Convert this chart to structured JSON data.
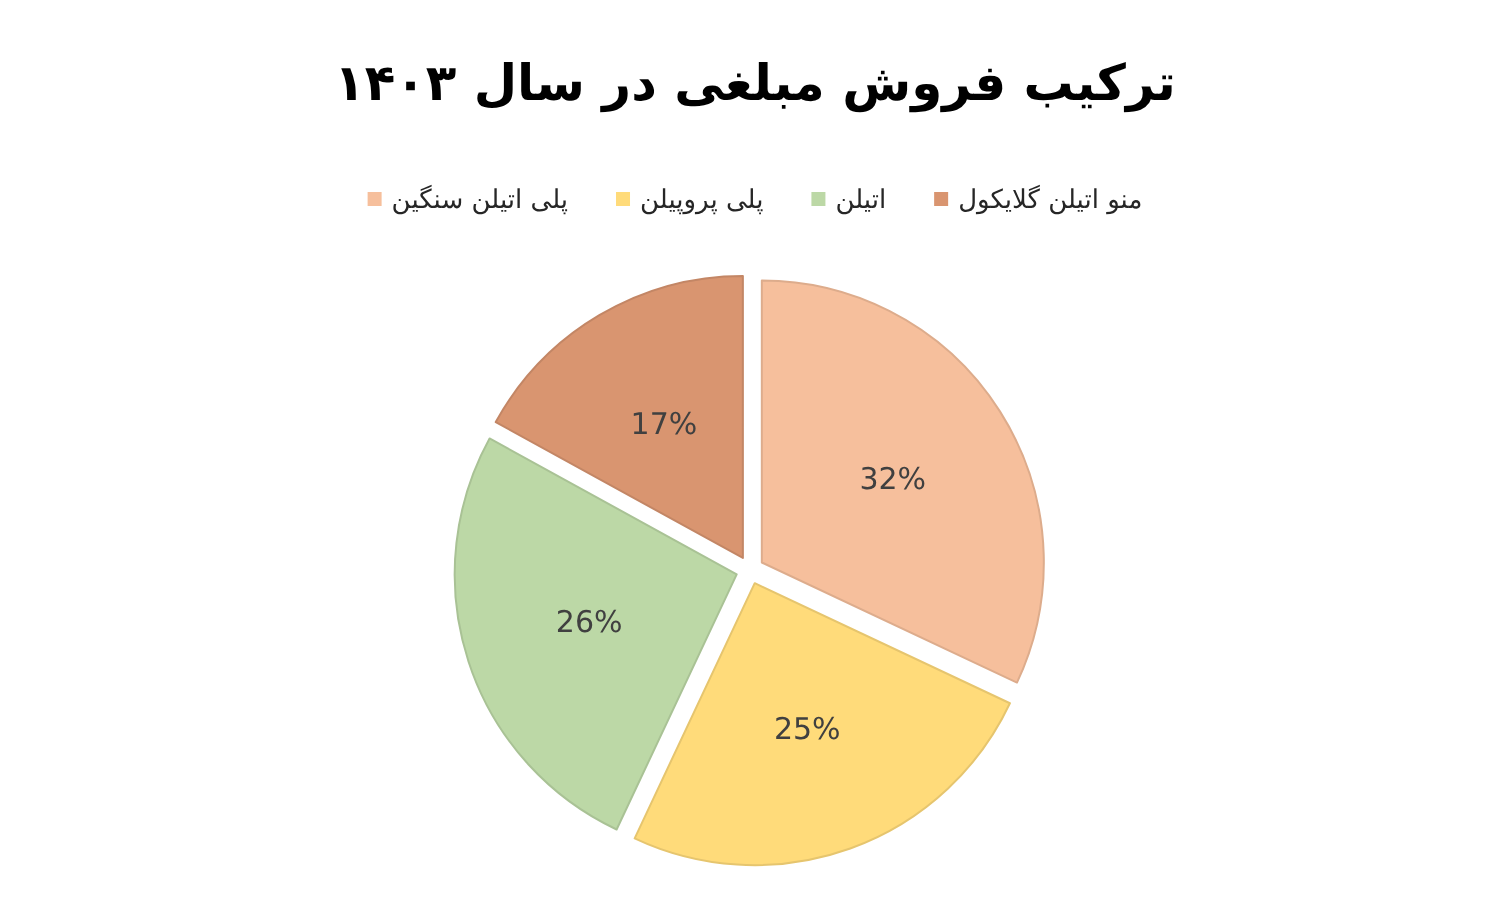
{
  "chart_data": {
    "type": "pie",
    "title": "ترکیب فروش مبلغی در سال ۱۴۰۳",
    "categories": [
      "پلی اتیلن سنگین",
      "پلی پروپیلن",
      "اتیلن",
      "منو اتیلن گلایکول"
    ],
    "values": [
      32,
      25,
      26,
      17
    ],
    "colors": [
      "#f6bf9c",
      "#ffdb7a",
      "#bcd8a6",
      "#d99570"
    ],
    "value_labels": [
      "32%",
      "25%",
      "26%",
      "17%"
    ],
    "legend": "top"
  }
}
